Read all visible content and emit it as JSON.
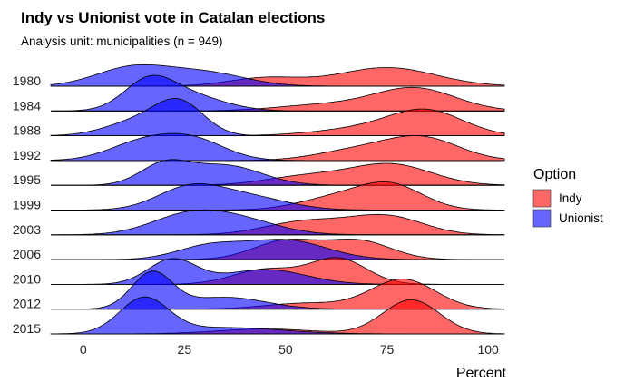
{
  "chart_data": {
    "type": "ridgeline",
    "title": "Indy vs Unionist vote in Catalan elections",
    "subtitle": "Analysis unit: municipalities (n = 949)",
    "xlabel": "Percent",
    "ylabel": "",
    "xlim": [
      -8,
      104
    ],
    "x_ticks": [
      0,
      25,
      50,
      75,
      100
    ],
    "categories": [
      "1980",
      "1984",
      "1988",
      "1992",
      "1995",
      "1999",
      "2003",
      "2006",
      "2010",
      "2012",
      "2015"
    ],
    "legend": {
      "title": "Option",
      "position": "right",
      "entries": [
        "Indy",
        "Unionist"
      ]
    },
    "series": [
      {
        "name": "Indy",
        "color": "#ff0000",
        "components": [
          [
            [
              0.25,
              45,
              9
            ],
            [
              0.75,
              75,
              12
            ]
          ],
          [
            [
              0.25,
              60,
              12
            ],
            [
              0.75,
              82,
              10
            ]
          ],
          [
            [
              0.3,
              70,
              12
            ],
            [
              0.7,
              85,
              9
            ]
          ],
          [
            [
              0.35,
              68,
              10
            ],
            [
              0.65,
              84,
              9
            ]
          ],
          [
            [
              0.3,
              55,
              10
            ],
            [
              0.7,
              76,
              10
            ]
          ],
          [
            [
              0.35,
              62,
              9
            ],
            [
              0.65,
              76,
              8
            ]
          ],
          [
            [
              0.45,
              55,
              10
            ],
            [
              0.55,
              75,
              9
            ]
          ],
          [
            [
              0.5,
              50,
              8
            ],
            [
              0.5,
              68,
              8
            ]
          ],
          [
            [
              0.4,
              45,
              8
            ],
            [
              0.6,
              63,
              7
            ]
          ],
          [
            [
              0.2,
              55,
              10
            ],
            [
              0.8,
              79,
              8
            ]
          ],
          [
            [
              0.2,
              45,
              12
            ],
            [
              0.8,
              81,
              7
            ]
          ]
        ]
      },
      {
        "name": "Unionist",
        "color": "#0000ff",
        "components": [
          [
            [
              0.55,
              12,
              9
            ],
            [
              0.45,
              30,
              10
            ]
          ],
          [
            [
              0.5,
              16,
              6
            ],
            [
              0.5,
              25,
              9
            ]
          ],
          [
            [
              0.4,
              14,
              8
            ],
            [
              0.6,
              24,
              6
            ]
          ],
          [
            [
              0.45,
              14,
              8
            ],
            [
              0.55,
              27,
              8
            ]
          ],
          [
            [
              0.4,
              20,
              6
            ],
            [
              0.6,
              35,
              9
            ]
          ],
          [
            [
              0.55,
              26,
              8
            ],
            [
              0.45,
              40,
              10
            ]
          ],
          [
            [
              0.5,
              25,
              9
            ],
            [
              0.5,
              38,
              10
            ]
          ],
          [
            [
              0.35,
              31,
              8
            ],
            [
              0.65,
              50,
              10
            ]
          ],
          [
            [
              0.5,
              22,
              6
            ],
            [
              0.5,
              45,
              10
            ]
          ],
          [
            [
              0.6,
              17,
              5
            ],
            [
              0.4,
              35,
              10
            ]
          ],
          [
            [
              0.7,
              15,
              6
            ],
            [
              0.3,
              35,
              14
            ]
          ]
        ]
      }
    ],
    "grid": false
  }
}
